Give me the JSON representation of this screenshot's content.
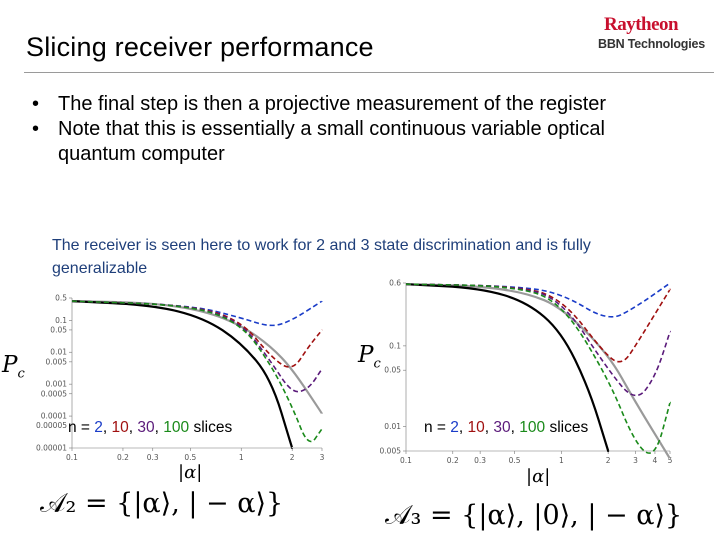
{
  "slide": {
    "title": "Slicing receiver performance",
    "logo": {
      "brand": "Raytheon",
      "sub": "BBN Technologies"
    },
    "bullets": [
      "The final step is then a projective measurement of the register",
      "Note that this is essentially a small continuous variable optical quantum computer"
    ],
    "caption": "The receiver is seen here to work for 2 and 3 state discrimination and is fully generalizable",
    "slices_label": {
      "prefix": "n = ",
      "n1": "2",
      "sep": ", ",
      "n2": "10",
      "n3": "30",
      "n4": "100",
      "suffix": " slices"
    },
    "left_alphabet": "𝒜₂ = {|α⟩, | − α⟩}",
    "right_alphabet": "𝒜₃ = {|α⟩, |0⟩, | − α⟩}"
  },
  "colors": {
    "blue": "#1a3cc8",
    "red": "#a01010",
    "purple": "#5a1a7a",
    "green": "#1a8a1a",
    "black": "#000000",
    "gray": "#9a9a9a",
    "logo_red": "#c8102e",
    "caption": "#1f3f7a"
  },
  "chart_data": [
    {
      "type": "line",
      "ylabel": "Pc",
      "xlabel": "|α|",
      "x_ticks": [
        "0.1",
        "0.2",
        "0.3",
        "0.5",
        "1",
        "2",
        "3"
      ],
      "y_ticks": [
        "0.5",
        "0.1",
        "0.05",
        "0.01",
        "0.005",
        "0.001",
        "0.0005",
        "0.0001",
        "0.00005",
        "0.00001"
      ],
      "x_scale": "log",
      "y_scale": "log",
      "xlim": [
        0.1,
        3
      ],
      "ylim": [
        1e-05,
        0.5
      ],
      "series": [
        {
          "style": "solid",
          "color": "gray",
          "x": [
            0.1,
            0.3,
            0.6,
            1.0,
            1.5,
            2.0,
            3.0
          ],
          "y": [
            0.4,
            0.35,
            0.2,
            0.07,
            0.015,
            0.003,
            0.00012
          ]
        },
        {
          "style": "solid",
          "color": "black",
          "x": [
            0.1,
            0.3,
            0.6,
            1.0,
            1.5,
            2.0
          ],
          "y": [
            0.4,
            0.3,
            0.12,
            0.02,
            0.0015,
            1e-05
          ]
        },
        {
          "style": "dashed",
          "color": "blue",
          "x": [
            0.1,
            0.5,
            1.0,
            1.5,
            2.0,
            3.0
          ],
          "y": [
            0.4,
            0.3,
            0.12,
            0.06,
            0.1,
            0.4
          ]
        },
        {
          "style": "dashed",
          "color": "red",
          "x": [
            0.1,
            0.5,
            1.0,
            1.5,
            2.0,
            2.5,
            3.0
          ],
          "y": [
            0.4,
            0.3,
            0.1,
            0.007,
            0.0025,
            0.015,
            0.05
          ]
        },
        {
          "style": "dashed",
          "color": "purple",
          "x": [
            0.1,
            0.5,
            1.0,
            1.5,
            2.0,
            2.5,
            3.0
          ],
          "y": [
            0.4,
            0.3,
            0.09,
            0.005,
            0.0005,
            0.0007,
            0.003
          ]
        },
        {
          "style": "dashed",
          "color": "green",
          "x": [
            0.1,
            0.5,
            1.0,
            1.5,
            2.0,
            2.5,
            3.0
          ],
          "y": [
            0.4,
            0.3,
            0.08,
            0.004,
            0.0002,
            1e-05,
            4e-05
          ]
        }
      ]
    },
    {
      "type": "line",
      "ylabel": "Pc",
      "xlabel": "|α|",
      "x_ticks": [
        "0.1",
        "0.2",
        "0.3",
        "0.5",
        "1",
        "2",
        "3",
        "4",
        "5"
      ],
      "y_ticks": [
        "0.6",
        "0.1",
        "0.05",
        "0.01",
        "0.005"
      ],
      "x_scale": "log",
      "y_scale": "log",
      "xlim": [
        0.1,
        5
      ],
      "ylim": [
        0.005,
        0.6
      ],
      "series": [
        {
          "style": "solid",
          "color": "gray",
          "x": [
            0.1,
            0.3,
            0.6,
            1.0,
            2.0,
            3.0,
            5.0
          ],
          "y": [
            0.58,
            0.55,
            0.45,
            0.3,
            0.08,
            0.02,
            0.004
          ]
        },
        {
          "style": "solid",
          "color": "black",
          "x": [
            0.1,
            0.3,
            0.6,
            1.0,
            1.5,
            2.0
          ],
          "y": [
            0.58,
            0.52,
            0.35,
            0.15,
            0.03,
            0.005
          ]
        },
        {
          "style": "dashed",
          "color": "blue",
          "x": [
            0.1,
            0.5,
            1.0,
            2.0,
            3.0,
            5.0
          ],
          "y": [
            0.58,
            0.55,
            0.45,
            0.2,
            0.3,
            0.6
          ]
        },
        {
          "style": "dashed",
          "color": "red",
          "x": [
            0.1,
            0.5,
            1.0,
            2.0,
            2.5,
            3.0,
            5.0
          ],
          "y": [
            0.58,
            0.55,
            0.4,
            0.07,
            0.06,
            0.1,
            0.5
          ]
        },
        {
          "style": "dashed",
          "color": "purple",
          "x": [
            0.1,
            0.5,
            1.0,
            2.0,
            3.0,
            4.0,
            5.0
          ],
          "y": [
            0.58,
            0.55,
            0.38,
            0.05,
            0.02,
            0.04,
            0.15
          ]
        },
        {
          "style": "dashed",
          "color": "green",
          "x": [
            0.1,
            0.5,
            1.0,
            2.0,
            3.0,
            4.0,
            5.0
          ],
          "y": [
            0.58,
            0.55,
            0.35,
            0.04,
            0.006,
            0.004,
            0.02
          ]
        }
      ]
    }
  ]
}
